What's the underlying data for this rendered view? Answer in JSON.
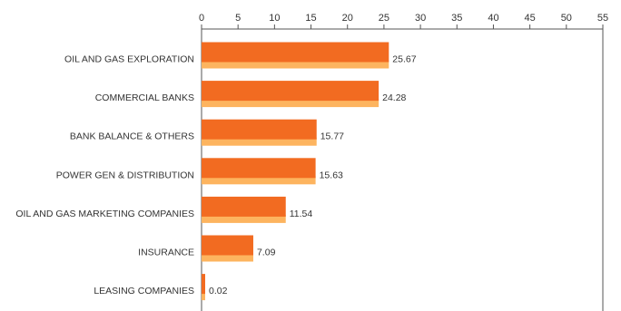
{
  "chart_data": {
    "type": "bar",
    "orientation": "horizontal",
    "categories": [
      "OIL AND GAS EXPLORATION",
      "COMMERCIAL BANKS",
      "BANK BALANCE & OTHERS",
      "POWER GEN & DISTRIBUTION",
      "OIL AND GAS MARKETING COMPANIES",
      "INSURANCE",
      "LEASING COMPANIES"
    ],
    "values": [
      25.67,
      24.28,
      15.77,
      15.63,
      11.54,
      7.09,
      0.02
    ],
    "data_labels": [
      "25.67",
      "24.28",
      "15.77",
      "15.63",
      "11.54",
      "7.09",
      "0.02"
    ],
    "title": "",
    "xlabel": "",
    "ylabel": "",
    "xlim": [
      0,
      55
    ],
    "x_ticks": [
      "0",
      "5",
      "10",
      "15",
      "20",
      "25",
      "30",
      "35",
      "40",
      "45",
      "50",
      "55"
    ],
    "x_axis_position": "top",
    "grid": false,
    "legend": "none",
    "colors": {
      "bar": "#f26b21",
      "bar_shadow": "#fdb45f",
      "axis": "#555555",
      "text": "#333333"
    }
  }
}
